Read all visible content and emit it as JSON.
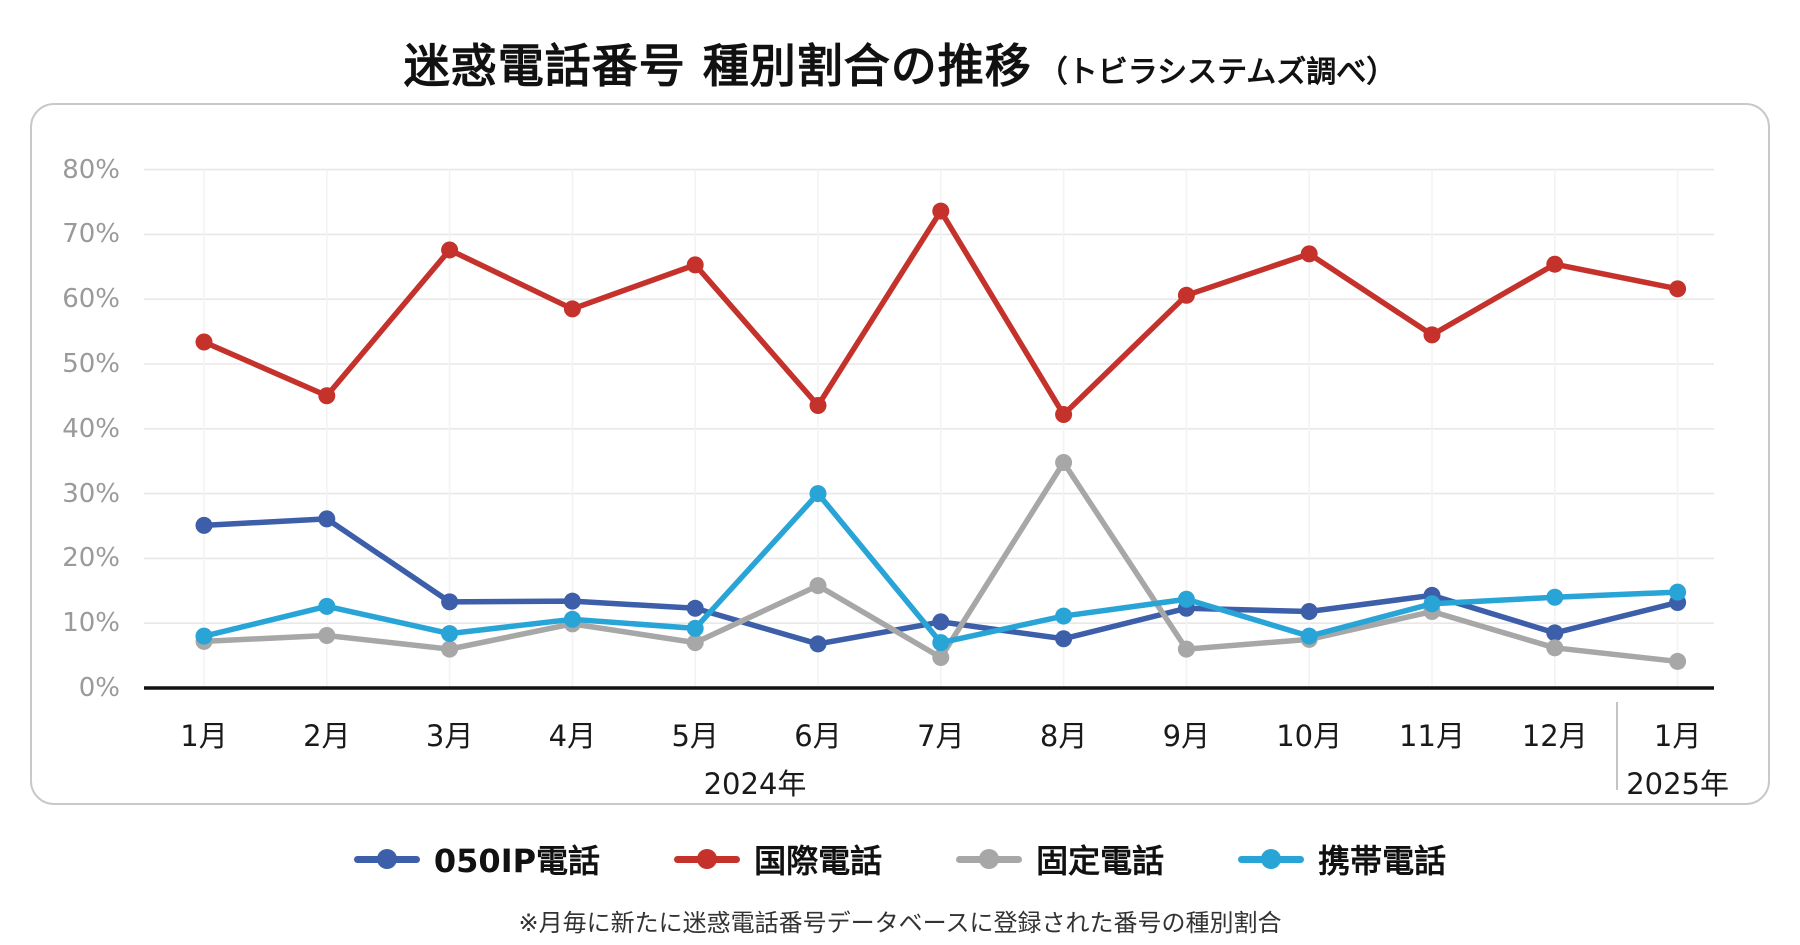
{
  "title": {
    "main": "迷惑電話番号 種別割合の推移",
    "note": "（トビラシステムズ調べ）"
  },
  "footnote": "※月毎に新たに迷惑電話番号データベースに登録された番号の種別割合",
  "chart_data": {
    "type": "line",
    "title": "迷惑電話番号 種別割合の推移（トビラシステムズ調べ）",
    "x_axis": {
      "months": [
        "1月",
        "2月",
        "3月",
        "4月",
        "5月",
        "6月",
        "7月",
        "8月",
        "9月",
        "10月",
        "11月",
        "12月",
        "1月"
      ],
      "year_2024": "2024年",
      "year_2025": "2025年"
    },
    "y_ticks": [
      "0%",
      "10%",
      "20%",
      "30%",
      "40%",
      "50%",
      "60%",
      "70%",
      "80%"
    ],
    "ylim": [
      0,
      85
    ],
    "grid": true,
    "legend_position": "bottom",
    "series": [
      {
        "name": "050IP電話",
        "color": "#3D5EA9",
        "values": [
          25.1,
          26.1,
          13.3,
          13.4,
          12.3,
          6.8,
          10.2,
          7.6,
          12.3,
          11.8,
          14.3,
          8.5,
          13.2
        ]
      },
      {
        "name": "国際電話",
        "color": "#C5312B",
        "values": [
          53.4,
          45.1,
          67.6,
          58.5,
          65.3,
          43.6,
          73.6,
          42.2,
          60.6,
          67.0,
          54.5,
          65.4,
          61.6
        ]
      },
      {
        "name": "固定電話",
        "color": "#A7A7A7",
        "values": [
          7.2,
          8.1,
          6.0,
          9.9,
          7.0,
          15.8,
          4.7,
          34.8,
          6.0,
          7.5,
          11.8,
          6.2,
          4.1
        ]
      },
      {
        "name": "携帯電話",
        "color": "#29A4D6",
        "values": [
          8.0,
          12.6,
          8.4,
          10.6,
          9.2,
          30.0,
          7.0,
          11.1,
          13.7,
          8.0,
          13.0,
          14.0,
          14.8
        ]
      }
    ]
  }
}
